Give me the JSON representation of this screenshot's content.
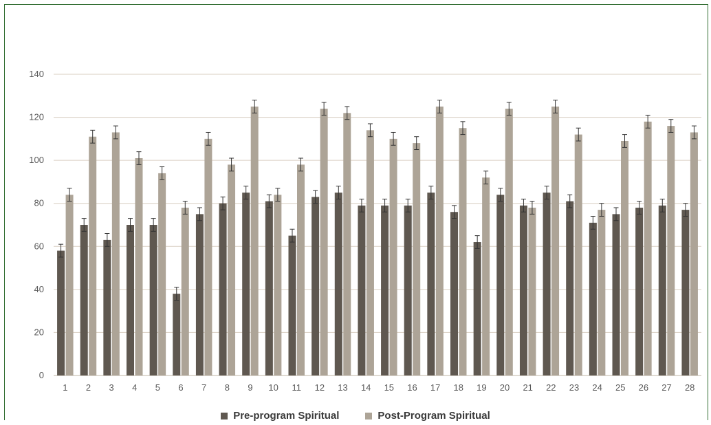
{
  "chart_data": {
    "type": "bar",
    "categories": [
      "1",
      "2",
      "3",
      "4",
      "5",
      "6",
      "7",
      "8",
      "9",
      "10",
      "11",
      "12",
      "13",
      "14",
      "15",
      "16",
      "17",
      "18",
      "19",
      "20",
      "21",
      "22",
      "23",
      "24",
      "25",
      "26",
      "27",
      "28"
    ],
    "series": [
      {
        "name": "Pre-program Spiritual",
        "color": "#5f5850",
        "values": [
          58,
          70,
          63,
          70,
          70,
          38,
          75,
          80,
          85,
          81,
          65,
          83,
          85,
          79,
          79,
          79,
          85,
          76,
          62,
          84,
          79,
          85,
          81,
          71,
          75,
          78,
          79,
          77
        ]
      },
      {
        "name": "Post-Program Spiritual",
        "color": "#ada497",
        "values": [
          84,
          111,
          113,
          101,
          94,
          78,
          110,
          98,
          125,
          84,
          98,
          124,
          122,
          114,
          110,
          108,
          125,
          115,
          92,
          124,
          78,
          125,
          112,
          77,
          109,
          118,
          116,
          113
        ]
      }
    ],
    "error": 3,
    "ylim": [
      0,
      140
    ],
    "yticks": [
      0,
      20,
      40,
      60,
      80,
      100,
      120,
      140
    ],
    "grid": true,
    "legend_position": "bottom",
    "title": "",
    "xlabel": "",
    "ylabel": ""
  },
  "legend": {
    "pre_label": "Pre-program Spiritual",
    "post_label": "Post-Program Spiritual"
  }
}
